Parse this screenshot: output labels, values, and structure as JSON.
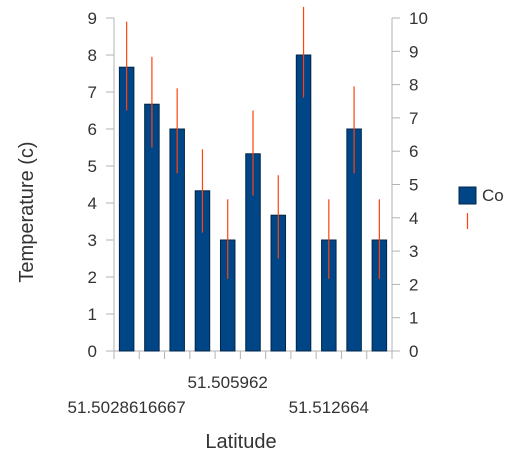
{
  "chart_data": {
    "type": "bar",
    "xlabel": "Latitude",
    "ylabel": "Temperature (c)",
    "x_tick_labels": [
      {
        "index": 0,
        "label": "51.5028616667",
        "row": 2
      },
      {
        "index": 4,
        "label": "51.505962",
        "row": 1
      },
      {
        "index": 8,
        "label": "51.512664",
        "row": 2
      }
    ],
    "ylim_left": [
      0,
      9
    ],
    "ylim_right": [
      0,
      10
    ],
    "y_ticks_left": [
      0,
      1,
      2,
      3,
      4,
      5,
      6,
      7,
      8,
      9
    ],
    "y_ticks_right": [
      0,
      1,
      2,
      3,
      4,
      5,
      6,
      7,
      8,
      9,
      10
    ],
    "grid": false,
    "legend_position": "right",
    "series": [
      {
        "values": [
          7.67,
          6.67,
          6.0,
          4.33,
          3.0,
          5.33,
          3.67,
          8.0,
          3.0,
          6.0,
          3.0
        ],
        "color": "#004586",
        "axis": "left"
      }
    ],
    "error_bars": {
      "color": "#ff420e",
      "axis": "left",
      "low": [
        6.5,
        5.5,
        4.8,
        3.2,
        1.95,
        4.2,
        2.5,
        6.85,
        1.95,
        4.8,
        1.95
      ],
      "high": [
        8.9,
        7.95,
        7.1,
        5.45,
        4.1,
        6.5,
        4.75,
        9.3,
        4.1,
        7.15,
        4.1
      ]
    },
    "legend": [
      {
        "label": "Co",
        "marker": "bar",
        "color": "#004586"
      },
      {
        "label": "",
        "marker": "error",
        "color": "#ff420e"
      }
    ]
  }
}
